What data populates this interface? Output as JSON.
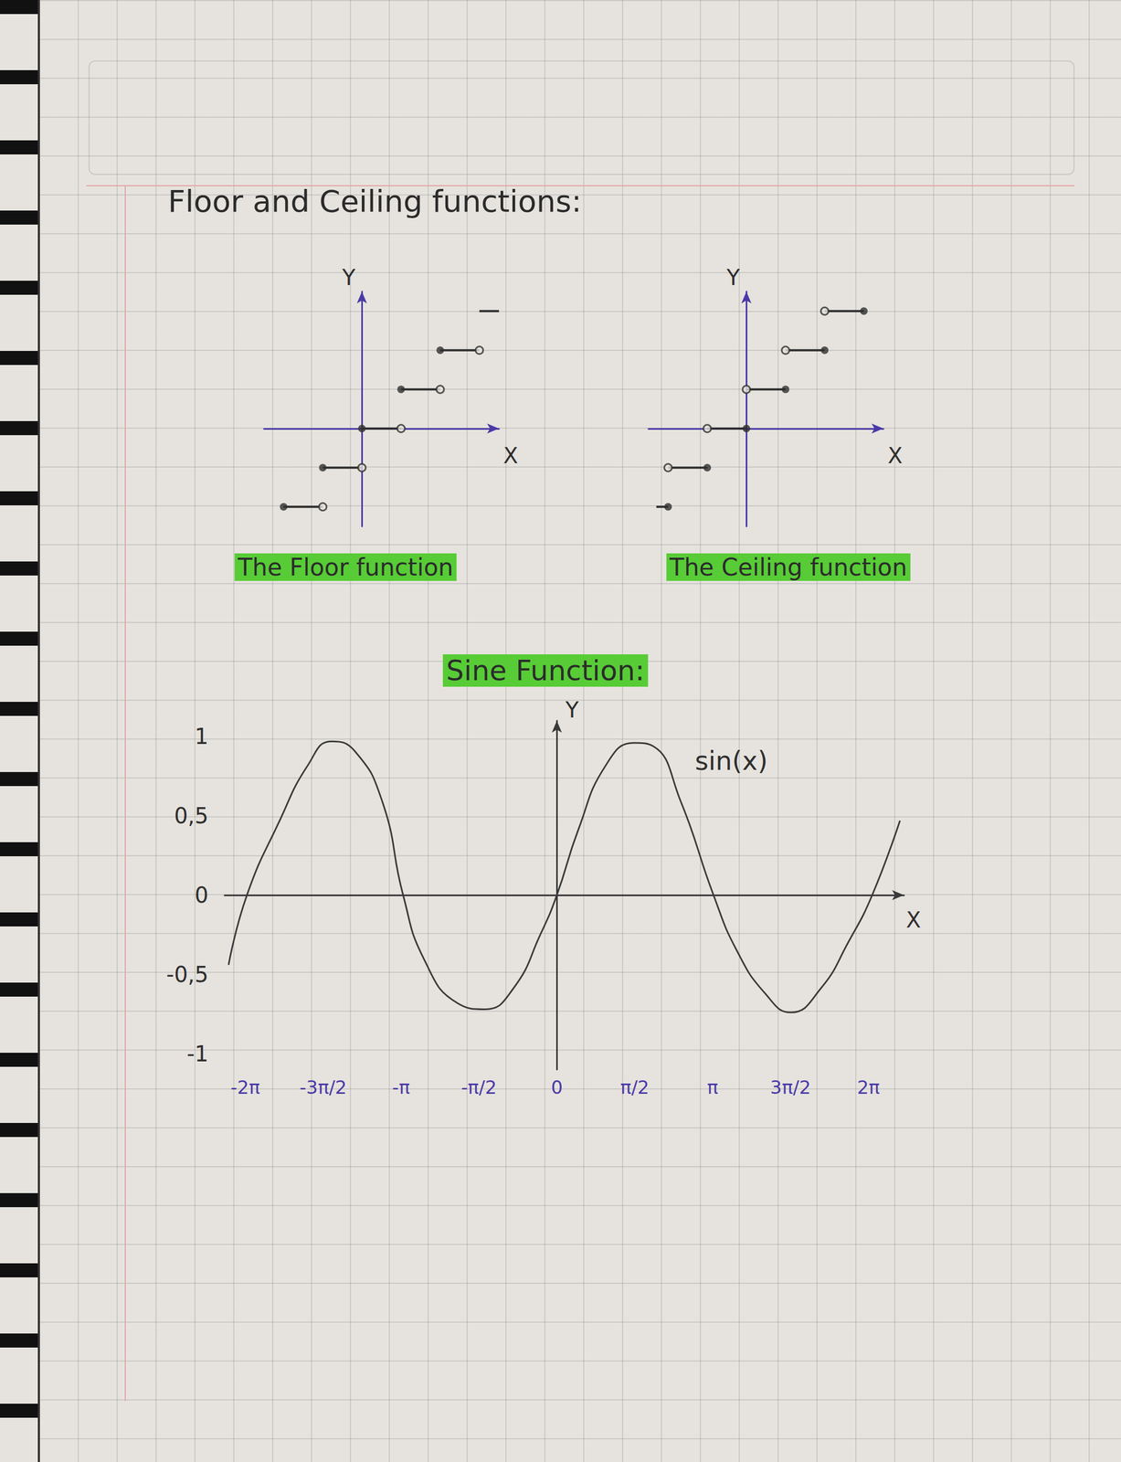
{
  "heading": "Floor and Ceiling functions:",
  "chart_data": [
    {
      "type": "step",
      "title": "The Floor function",
      "xlabel": "X",
      "ylabel": "Y",
      "xlim": [
        -2.5,
        3.5
      ],
      "ylim": [
        -2.5,
        3.5
      ],
      "tick_labels": false,
      "grid": false,
      "series": [
        {
          "type": "segments",
          "color": "#2f2f2f",
          "x_start": [
            -2,
            -1,
            0,
            1,
            2,
            3
          ],
          "x_end": [
            -1,
            0,
            1,
            2,
            3,
            3.5
          ],
          "values": [
            -2,
            -1,
            0,
            1,
            2,
            3
          ]
        },
        {
          "type": "scatter",
          "marker": "filled",
          "color": "#2f2f2f",
          "x": [
            -2,
            -1,
            0,
            1,
            2
          ],
          "values": [
            -2,
            -1,
            0,
            1,
            2
          ]
        },
        {
          "type": "scatter",
          "marker": "open",
          "color": "#2f2f2f",
          "x": [
            -1,
            0,
            1,
            2,
            3
          ],
          "values": [
            -2,
            -1,
            0,
            1,
            2
          ]
        }
      ]
    },
    {
      "type": "step",
      "title": "The Ceiling function",
      "xlabel": "X",
      "ylabel": "Y",
      "xlim": [
        -2.5,
        3.5
      ],
      "ylim": [
        -2.5,
        3.5
      ],
      "tick_labels": false,
      "grid": false,
      "series": [
        {
          "type": "segments",
          "color": "#2f2f2f",
          "x_start": [
            -2.3,
            -2,
            -1,
            0,
            1,
            2
          ],
          "x_end": [
            -2,
            -1,
            0,
            1,
            2,
            3
          ],
          "values": [
            -2,
            -1,
            0,
            1,
            2,
            3
          ]
        },
        {
          "type": "scatter",
          "marker": "filled",
          "color": "#2f2f2f",
          "x": [
            -2,
            -1,
            0,
            1,
            2,
            3
          ],
          "values": [
            -2,
            -1,
            0,
            1,
            2,
            3
          ]
        },
        {
          "type": "scatter",
          "marker": "open",
          "color": "#2f2f2f",
          "x": [
            -2,
            -1,
            0,
            1,
            2
          ],
          "values": [
            -1,
            0,
            1,
            2,
            3
          ]
        }
      ]
    },
    {
      "type": "line",
      "title": "Sine Function:",
      "xlabel": "X",
      "ylabel": "Y",
      "xlim": [
        -6.7,
        7
      ],
      "ylim": [
        -1.1,
        1.1
      ],
      "grid": false,
      "xticks": [
        {
          "value": -6.2832,
          "label": "-2π"
        },
        {
          "value": -4.7124,
          "label": "-3π/2"
        },
        {
          "value": -3.1416,
          "label": "-π"
        },
        {
          "value": -1.5708,
          "label": "-π/2"
        },
        0,
        {
          "value": 1.5708,
          "label": "π/2"
        },
        {
          "value": 3.1416,
          "label": "π"
        },
        {
          "value": 4.7124,
          "label": "3π/2"
        },
        {
          "value": 6.2832,
          "label": "2π"
        }
      ],
      "yticks": [
        -1,
        {
          "value": -0.5,
          "label": "-0,5"
        },
        0,
        {
          "value": 0.5,
          "label": "0,5"
        },
        1
      ],
      "x": [
        -6.62,
        -6.25,
        -5.59,
        -5.02,
        -4.55,
        -4.08,
        -3.52,
        -3.1,
        -2.67,
        -2.01,
        -1.45,
        -0.88,
        -0.32,
        0,
        0.43,
        0.99,
        1.56,
        1.94,
        2.5,
        3.16,
        3.63,
        4.2,
        4.72,
        5.32,
        5.89,
        6.36,
        6.92
      ],
      "series": [
        {
          "name": "sin(x)",
          "color": "#3a3a3a",
          "line_style": "solid",
          "marker": "none",
          "values": [
            -0.44,
            0,
            0.47,
            0.82,
            0.97,
            0.91,
            0.59,
            0,
            -0.41,
            -0.68,
            -0.72,
            -0.59,
            -0.24,
            0,
            0.41,
            0.82,
            0.96,
            0.94,
            0.59,
            0,
            -0.35,
            -0.62,
            -0.74,
            -0.59,
            -0.29,
            0,
            0.47
          ]
        }
      ]
    }
  ]
}
